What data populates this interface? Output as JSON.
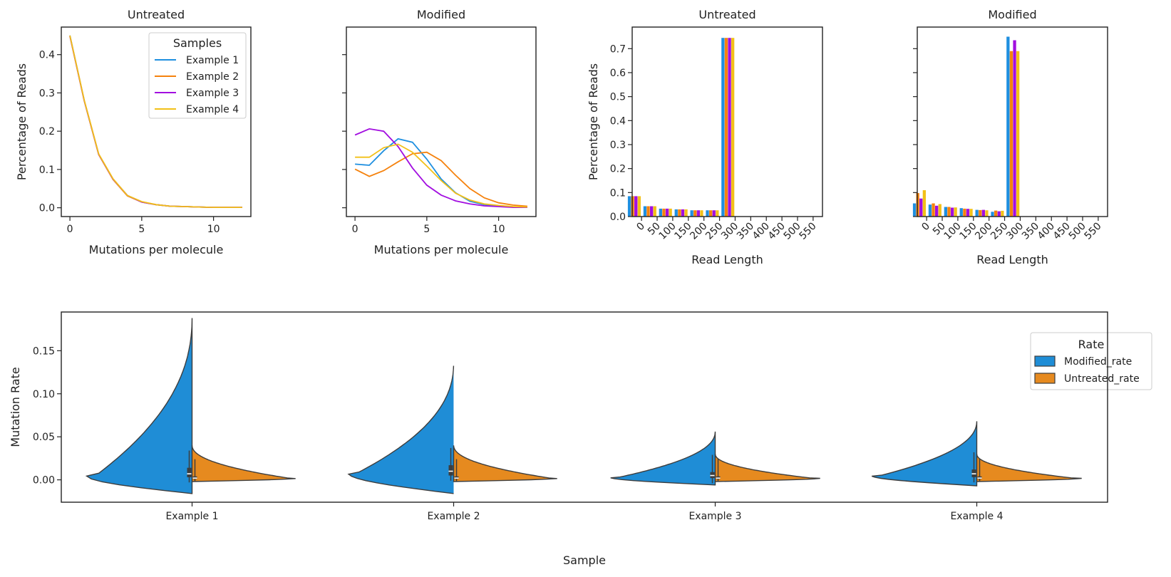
{
  "colors": {
    "example1": "#1E8FE0",
    "example2": "#F5820D",
    "example3": "#A20EE0",
    "example4": "#F2C018",
    "modified_rate": "#1F8DD6",
    "untreated_rate": "#E68A1F",
    "edge": "#3d3d3d"
  },
  "chart_data": [
    {
      "type": "line",
      "title": "Untreated",
      "xlabel": "Mutations per molecule",
      "ylabel": "Percentage of Reads",
      "xlim": [
        -0.6,
        12.6
      ],
      "ylim": [
        -0.023,
        0.472
      ],
      "xticks": [
        0,
        5,
        10
      ],
      "yticks": [
        0.0,
        0.1,
        0.2,
        0.3,
        0.4
      ],
      "ytick_labels": [
        "0.0",
        "0.1",
        "0.2",
        "0.3",
        "0.4"
      ],
      "legend": {
        "title": "Samples",
        "position": "top-right",
        "entries": [
          "Example 1",
          "Example 2",
          "Example 3",
          "Example 4"
        ]
      },
      "x": [
        0,
        1,
        2,
        3,
        4,
        5,
        6,
        7,
        8,
        9,
        10,
        11,
        12
      ],
      "series": [
        {
          "name": "Example 1",
          "values": [
            0.45,
            0.28,
            0.14,
            0.075,
            0.032,
            0.015,
            0.008,
            0.004,
            0.003,
            0.002,
            0.001,
            0.001,
            0.001
          ]
        },
        {
          "name": "Example 2",
          "values": [
            0.448,
            0.279,
            0.139,
            0.074,
            0.031,
            0.015,
            0.008,
            0.004,
            0.003,
            0.002,
            0.001,
            0.001,
            0.001
          ]
        },
        {
          "name": "Example 3",
          "values": [
            0.449,
            0.28,
            0.14,
            0.075,
            0.032,
            0.015,
            0.008,
            0.004,
            0.003,
            0.002,
            0.001,
            0.001,
            0.001
          ]
        },
        {
          "name": "Example 4",
          "values": [
            0.45,
            0.281,
            0.141,
            0.076,
            0.032,
            0.016,
            0.008,
            0.004,
            0.003,
            0.002,
            0.001,
            0.001,
            0.001
          ]
        }
      ]
    },
    {
      "type": "line",
      "title": "Modified",
      "xlabel": "Mutations per molecule",
      "ylabel": "",
      "sharey": true,
      "xlim": [
        -0.6,
        12.6
      ],
      "ylim": [
        -0.023,
        0.472
      ],
      "xticks": [
        0,
        5,
        10
      ],
      "yticks": [
        0.0,
        0.1,
        0.2,
        0.3,
        0.4
      ],
      "x": [
        0,
        1,
        2,
        3,
        4,
        5,
        6,
        7,
        8,
        9,
        10,
        11,
        12
      ],
      "series": [
        {
          "name": "Example 1",
          "values": [
            0.114,
            0.111,
            0.149,
            0.18,
            0.171,
            0.127,
            0.075,
            0.039,
            0.017,
            0.008,
            0.004,
            0.002,
            0.001
          ]
        },
        {
          "name": "Example 2",
          "values": [
            0.101,
            0.082,
            0.097,
            0.12,
            0.141,
            0.145,
            0.123,
            0.085,
            0.05,
            0.026,
            0.013,
            0.007,
            0.004
          ]
        },
        {
          "name": "Example 3",
          "values": [
            0.19,
            0.206,
            0.2,
            0.16,
            0.104,
            0.059,
            0.033,
            0.018,
            0.01,
            0.005,
            0.003,
            0.001,
            0.001
          ]
        },
        {
          "name": "Example 4",
          "values": [
            0.132,
            0.132,
            0.157,
            0.166,
            0.145,
            0.109,
            0.071,
            0.038,
            0.02,
            0.01,
            0.006,
            0.003,
            0.002
          ]
        }
      ]
    },
    {
      "type": "bar",
      "title": "Untreated",
      "xlabel": "Read Length",
      "ylabel": "Percentage of Reads",
      "xlim": [
        -30,
        580
      ],
      "ylim": [
        0,
        0.79
      ],
      "xticks": [
        0,
        50,
        100,
        150,
        200,
        250,
        300,
        350,
        400,
        450,
        500,
        550
      ],
      "yticks": [
        0.0,
        0.1,
        0.2,
        0.3,
        0.4,
        0.5,
        0.6,
        0.7
      ],
      "categories": [
        0,
        50,
        100,
        150,
        200,
        250,
        300
      ],
      "series": [
        {
          "name": "Example 1",
          "values": [
            0.085,
            0.043,
            0.033,
            0.03,
            0.026,
            0.026,
            0.745
          ]
        },
        {
          "name": "Example 2",
          "values": [
            0.085,
            0.043,
            0.033,
            0.03,
            0.026,
            0.026,
            0.745
          ]
        },
        {
          "name": "Example 3",
          "values": [
            0.085,
            0.043,
            0.033,
            0.03,
            0.026,
            0.026,
            0.745
          ]
        },
        {
          "name": "Example 4",
          "values": [
            0.085,
            0.043,
            0.033,
            0.03,
            0.026,
            0.026,
            0.745
          ]
        }
      ]
    },
    {
      "type": "bar",
      "title": "Modified",
      "xlabel": "Read Length",
      "ylabel": "",
      "sharey": true,
      "xlim": [
        -30,
        580
      ],
      "ylim": [
        0,
        0.79
      ],
      "xticks": [
        0,
        50,
        100,
        150,
        200,
        250,
        300,
        350,
        400,
        450,
        500,
        550
      ],
      "yticks": [
        0.0,
        0.1,
        0.2,
        0.3,
        0.4,
        0.5,
        0.6,
        0.7
      ],
      "categories": [
        0,
        50,
        100,
        150,
        200,
        250,
        300
      ],
      "series": [
        {
          "name": "Example 1",
          "values": [
            0.055,
            0.05,
            0.04,
            0.035,
            0.028,
            0.02,
            0.75
          ]
        },
        {
          "name": "Example 2",
          "values": [
            0.098,
            0.055,
            0.04,
            0.033,
            0.027,
            0.025,
            0.69
          ]
        },
        {
          "name": "Example 3",
          "values": [
            0.075,
            0.045,
            0.037,
            0.032,
            0.028,
            0.022,
            0.735
          ]
        },
        {
          "name": "Example 4",
          "values": [
            0.11,
            0.052,
            0.038,
            0.032,
            0.026,
            0.024,
            0.69
          ]
        }
      ]
    },
    {
      "type": "violin",
      "title": "",
      "xlabel": "Sample",
      "ylabel": "Mutation Rate",
      "ylim": [
        -0.026,
        0.195
      ],
      "yticks": [
        0.0,
        0.05,
        0.1,
        0.15
      ],
      "ytick_labels": [
        "0.00",
        "0.05",
        "0.10",
        "0.15"
      ],
      "categories": [
        "Example 1",
        "Example 2",
        "Example 3",
        "Example 4"
      ],
      "split": true,
      "legend": {
        "title": "Rate",
        "position": "top-right",
        "entries": [
          "Modified_rate",
          "Untreated_rate"
        ]
      },
      "series": [
        {
          "name": "Modified_rate",
          "min": [
            -0.016,
            -0.016,
            -0.006,
            -0.007
          ],
          "max": [
            0.188,
            0.135,
            0.056,
            0.068
          ],
          "q1": [
            0.003,
            0.005,
            0.002,
            0.003
          ],
          "median": [
            0.007,
            0.01,
            0.005,
            0.007
          ],
          "q3": [
            0.014,
            0.017,
            0.009,
            0.012
          ]
        },
        {
          "name": "Untreated_rate",
          "min": [
            -0.002,
            -0.002,
            -0.002,
            -0.002
          ],
          "max": [
            0.04,
            0.04,
            0.03,
            0.03
          ],
          "q1": [
            0.001,
            0.001,
            0.001,
            0.001
          ],
          "median": [
            0.002,
            0.002,
            0.002,
            0.002
          ],
          "q3": [
            0.004,
            0.004,
            0.004,
            0.004
          ]
        }
      ]
    }
  ]
}
